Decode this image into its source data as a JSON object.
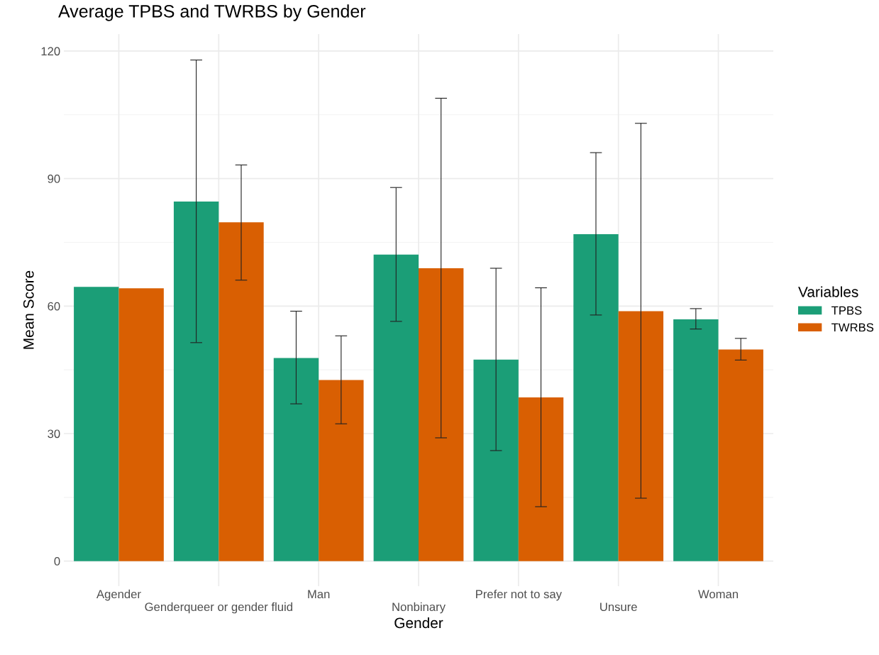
{
  "chart_data": {
    "type": "bar",
    "title": "Average TPBS and TWRBS by Gender",
    "xlabel": "Gender",
    "ylabel": "Mean Score",
    "legend_title": "Variables",
    "categories": [
      "Agender",
      "Genderqueer or gender fluid",
      "Man",
      "Nonbinary",
      "Prefer not to say",
      "Unsure",
      "Woman"
    ],
    "series": [
      {
        "name": "TPBS",
        "color": "#1b9e77",
        "values": [
          64.5,
          84.6,
          47.8,
          72.1,
          47.4,
          76.9,
          56.9
        ],
        "errors": [
          null,
          [
            51.4,
            117.9
          ],
          [
            37.0,
            58.8
          ],
          [
            56.4,
            87.9
          ],
          [
            26.0,
            68.9
          ],
          [
            57.9,
            96.1
          ],
          [
            54.6,
            59.4
          ]
        ]
      },
      {
        "name": "TWRBS",
        "color": "#d95f02",
        "values": [
          64.2,
          79.7,
          42.6,
          68.9,
          38.5,
          58.8,
          49.8
        ],
        "errors": [
          null,
          [
            66.1,
            93.2
          ],
          [
            32.3,
            53.0
          ],
          [
            29.0,
            108.9
          ],
          [
            12.8,
            64.3
          ],
          [
            14.8,
            103.0
          ],
          [
            47.3,
            52.4
          ]
        ]
      }
    ],
    "ylim": [
      -5.9,
      124
    ],
    "yticks": [
      0,
      30,
      60,
      90,
      120
    ],
    "grid": true,
    "legend": "right"
  }
}
